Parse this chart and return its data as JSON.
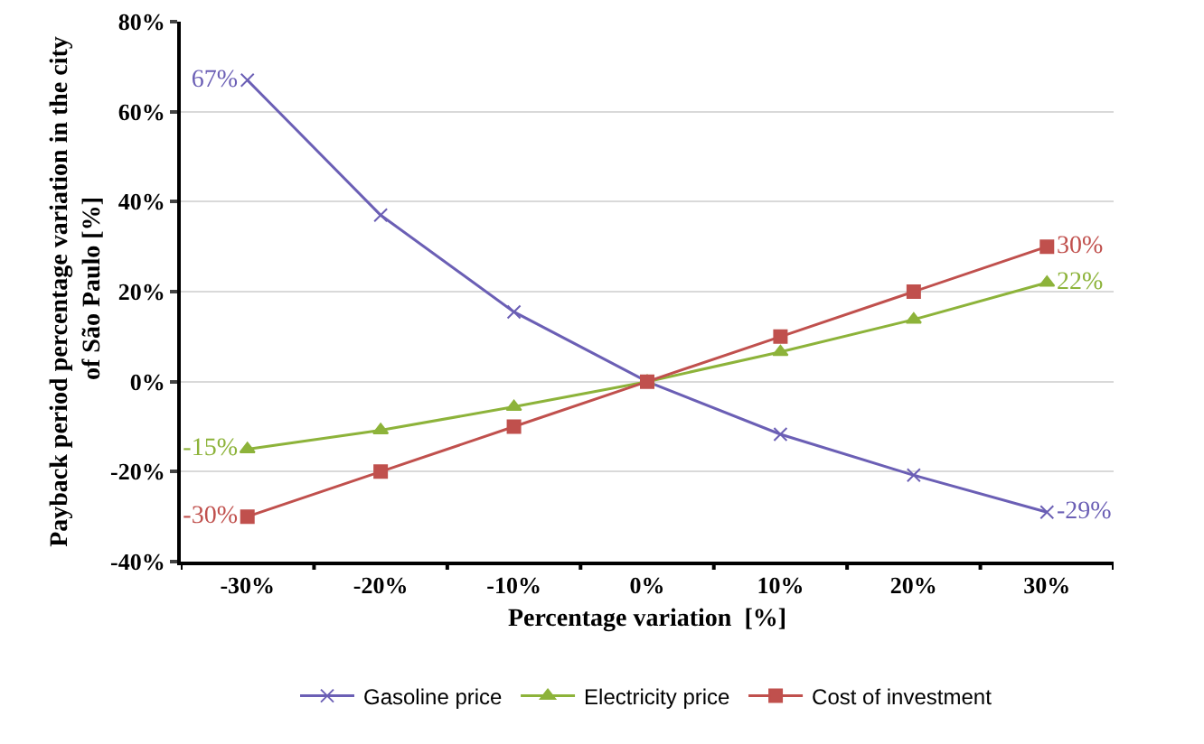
{
  "chart_data": {
    "type": "line",
    "xlabel": "Percentage variation  [%]",
    "ylabel": "Payback period percentage variation in the city of São Paulo [%]",
    "categories": [
      "-30%",
      "-20%",
      "-10%",
      "0%",
      "10%",
      "20%",
      "30%"
    ],
    "series": [
      {
        "name": "Gasoline price",
        "color": "#6b5fb5",
        "marker": "cross",
        "values": [
          67,
          37,
          15.5,
          0,
          -11.7,
          -20.8,
          -29
        ],
        "value_labels": [
          "67%",
          null,
          null,
          null,
          null,
          null,
          "-29%"
        ]
      },
      {
        "name": "Electricity price",
        "color": "#8db33a",
        "marker": "triangle",
        "values": [
          -15,
          -10.8,
          -5.6,
          0,
          6.6,
          13.8,
          22
        ],
        "value_labels": [
          "-15%",
          null,
          null,
          null,
          null,
          null,
          "22%"
        ]
      },
      {
        "name": "Cost of investment",
        "color": "#c0504d",
        "marker": "square",
        "values": [
          -30,
          -20,
          -10,
          0,
          10,
          20,
          30
        ],
        "value_labels": [
          "-30%",
          null,
          null,
          null,
          null,
          null,
          "30%"
        ]
      }
    ],
    "ylim": [
      -40,
      80
    ],
    "yticks": [
      {
        "value": -40,
        "label": "-40%"
      },
      {
        "value": -20,
        "label": "-20%"
      },
      {
        "value": 0,
        "label": "0%"
      },
      {
        "value": 20,
        "label": "20%"
      },
      {
        "value": 40,
        "label": "40%"
      },
      {
        "value": 60,
        "label": "60%"
      },
      {
        "value": 80,
        "label": "80%"
      }
    ],
    "grid": "y",
    "legend": "bottom",
    "line_style": "solid"
  }
}
